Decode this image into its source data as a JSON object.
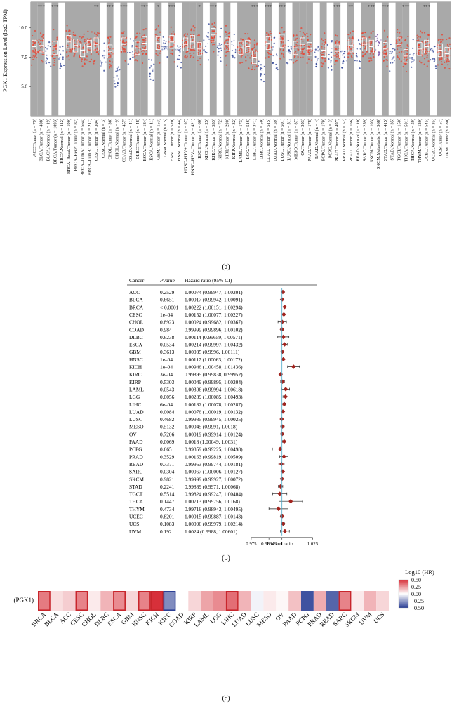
{
  "panel_a": {
    "label": "(a)",
    "ylabel": "PGK1 Expression Level (log2 TPM)",
    "yticks": [
      "5.0",
      "7.5",
      "10.0"
    ],
    "groups": [
      {
        "label": "ACC.Tumor (n = 79)",
        "kind": "tumor",
        "median": 8.4,
        "shade": true,
        "sig": ""
      },
      {
        "label": "BLCA.Tumor (n = 408)",
        "kind": "tumor",
        "median": 8.5,
        "shade": true,
        "sig": "***"
      },
      {
        "label": "BLCA.Normal (n = 19)",
        "kind": "normal",
        "median": 7.7,
        "shade": false,
        "sig": ""
      },
      {
        "label": "BRCA.Tumor (n = 1093)",
        "kind": "tumor",
        "median": 8.3,
        "shade": true,
        "sig": "***"
      },
      {
        "label": "BRCA.Normal (n = 112)",
        "kind": "normal",
        "median": 7.6,
        "shade": false,
        "sig": ""
      },
      {
        "label": "BRCA–Basal.Tumor (n = 190)",
        "kind": "tumor",
        "median": 8.8,
        "shade": true,
        "sig": ""
      },
      {
        "label": "BRCA–Her2.Tumor (n = 82)",
        "kind": "tumor",
        "median": 8.5,
        "shade": true,
        "sig": ""
      },
      {
        "label": "BRCA–LumA.Tumor (n = 564)",
        "kind": "tumor",
        "median": 8.1,
        "shade": true,
        "sig": ""
      },
      {
        "label": "BRCA–LumB.Tumor (n = 217)",
        "kind": "tumor",
        "median": 8.4,
        "shade": true,
        "sig": ""
      },
      {
        "label": "CESC.Tumor (n = 304)",
        "kind": "tumor",
        "median": 8.6,
        "shade": true,
        "sig": "**"
      },
      {
        "label": "CESC.Normal (n = 3)",
        "kind": "normal",
        "median": 7.2,
        "shade": false,
        "sig": ""
      },
      {
        "label": "CHOL.Tumor (n = 36)",
        "kind": "tumor",
        "median": 8.0,
        "shade": true,
        "sig": "***"
      },
      {
        "label": "CHOL.Normal (n = 9)",
        "kind": "normal",
        "median": 6.1,
        "shade": false,
        "sig": ""
      },
      {
        "label": "COAD.Tumor (n = 457)",
        "kind": "tumor",
        "median": 8.6,
        "shade": true,
        "sig": "***"
      },
      {
        "label": "COAD.Normal (n = 41)",
        "kind": "normal",
        "median": 7.8,
        "shade": false,
        "sig": ""
      },
      {
        "label": "DLBC.Tumor (n = 48)",
        "kind": "tumor",
        "median": 8.3,
        "shade": true,
        "sig": ""
      },
      {
        "label": "ESCA.Tumor (n = 184)",
        "kind": "tumor",
        "median": 8.7,
        "shade": true,
        "sig": "***"
      },
      {
        "label": "ESCA.Normal (n = 11)",
        "kind": "normal",
        "median": 6.2,
        "shade": false,
        "sig": ""
      },
      {
        "label": "GBM.Tumor (n = 153)",
        "kind": "tumor",
        "median": 8.7,
        "shade": true,
        "sig": "*"
      },
      {
        "label": "GBM.Normal (n = 5)",
        "kind": "normal",
        "median": 8.3,
        "shade": false,
        "sig": ""
      },
      {
        "label": "HNSC.Tumor (n = 520)",
        "kind": "tumor",
        "median": 8.8,
        "shade": true,
        "sig": "***"
      },
      {
        "label": "HNSC.Normal (n = 44)",
        "kind": "normal",
        "median": 7.8,
        "shade": false,
        "sig": ""
      },
      {
        "label": "HNSC–HPV+.Tumor (n = 97)",
        "kind": "tumor",
        "median": 8.6,
        "shade": true,
        "sig": ""
      },
      {
        "label": "HNSC–HPV–.Tumor (n = 421)",
        "kind": "tumor",
        "median": 8.8,
        "shade": true,
        "sig": ""
      },
      {
        "label": "KICH.Tumor (n = 66)",
        "kind": "tumor",
        "median": 8.2,
        "shade": true,
        "sig": "*"
      },
      {
        "label": "KICH.Normal (n = 25)",
        "kind": "normal",
        "median": 8.6,
        "shade": false,
        "sig": ""
      },
      {
        "label": "KIRC.Tumor (n = 533)",
        "kind": "tumor",
        "median": 9.4,
        "shade": true,
        "sig": "***"
      },
      {
        "label": "KIRC.Normal (n = 72)",
        "kind": "normal",
        "median": 8.4,
        "shade": false,
        "sig": ""
      },
      {
        "label": "KIRP.Tumor (n = 290)",
        "kind": "tumor",
        "median": 8.6,
        "shade": true,
        "sig": ""
      },
      {
        "label": "KIRP.Normal (n = 32)",
        "kind": "normal",
        "median": 8.4,
        "shade": false,
        "sig": ""
      },
      {
        "label": "LAML.Tumor (n = 173)",
        "kind": "tumor",
        "median": 8.3,
        "shade": true,
        "sig": ""
      },
      {
        "label": "LGG.Tumor (n = 516)",
        "kind": "tumor",
        "median": 8.4,
        "shade": true,
        "sig": ""
      },
      {
        "label": "LIHC.Tumor (n = 371)",
        "kind": "tumor",
        "median": 7.5,
        "shade": true,
        "sig": "***"
      },
      {
        "label": "LIHC.Normal (n = 50)",
        "kind": "normal",
        "median": 6.3,
        "shade": false,
        "sig": ""
      },
      {
        "label": "LUAD.Tumor (n = 515)",
        "kind": "tumor",
        "median": 8.7,
        "shade": true,
        "sig": "***"
      },
      {
        "label": "LUAD.Normal (n = 59)",
        "kind": "normal",
        "median": 7.9,
        "shade": false,
        "sig": ""
      },
      {
        "label": "LUSC.Tumor (n = 501)",
        "kind": "tumor",
        "median": 8.9,
        "shade": true,
        "sig": "***"
      },
      {
        "label": "LUSC.Normal (n = 51)",
        "kind": "normal",
        "median": 7.9,
        "shade": false,
        "sig": ""
      },
      {
        "label": "MESO.Tumor (n = 87)",
        "kind": "tumor",
        "median": 8.3,
        "shade": true,
        "sig": ""
      },
      {
        "label": "OV.Tumor (n = 303)",
        "kind": "tumor",
        "median": 8.6,
        "shade": true,
        "sig": ""
      },
      {
        "label": "PAAD.Tumor (n = 178)",
        "kind": "tumor",
        "median": 8.2,
        "shade": true,
        "sig": ""
      },
      {
        "label": "PAAD.Normal (n = 4)",
        "kind": "normal",
        "median": 7.7,
        "shade": false,
        "sig": ""
      },
      {
        "label": "PCPG.Tumor (n = 179)",
        "kind": "tumor",
        "median": 8.1,
        "shade": true,
        "sig": ""
      },
      {
        "label": "PCPG.Normal (n = 3)",
        "kind": "normal",
        "median": 7.8,
        "shade": false,
        "sig": ""
      },
      {
        "label": "PRAD.Tumor (n = 497)",
        "kind": "tumor",
        "median": 8.0,
        "shade": true,
        "sig": "***"
      },
      {
        "label": "PRAD.Normal (n = 52)",
        "kind": "normal",
        "median": 7.6,
        "shade": false,
        "sig": ""
      },
      {
        "label": "READ.Tumor (n = 166)",
        "kind": "tumor",
        "median": 8.5,
        "shade": true,
        "sig": "**"
      },
      {
        "label": "READ.Normal (n = 10)",
        "kind": "normal",
        "median": 8.0,
        "shade": false,
        "sig": ""
      },
      {
        "label": "SARC.Tumor (n = 259)",
        "kind": "tumor",
        "median": 8.6,
        "shade": true,
        "sig": ""
      },
      {
        "label": "SKCM.Tumor (n = 103)",
        "kind": "tumor",
        "median": 8.4,
        "shade": true,
        "sig": "***"
      },
      {
        "label": "SKCM.Metastasis (n = 368)",
        "kind": "metastasis",
        "median": 8.6,
        "shade": false,
        "sig": ""
      },
      {
        "label": "STAD.Tumor (n = 415)",
        "kind": "tumor",
        "median": 8.2,
        "shade": true,
        "sig": "***"
      },
      {
        "label": "STAD.Normal (n = 35)",
        "kind": "normal",
        "median": 7.2,
        "shade": false,
        "sig": ""
      },
      {
        "label": "TGCT.Tumor (n = 150)",
        "kind": "tumor",
        "median": 8.6,
        "shade": true,
        "sig": ""
      },
      {
        "label": "THCA.Tumor (n = 501)",
        "kind": "tumor",
        "median": 7.6,
        "shade": true,
        "sig": "***"
      },
      {
        "label": "THCA.Normal (n = 59)",
        "kind": "normal",
        "median": 7.9,
        "shade": false,
        "sig": ""
      },
      {
        "label": "THYM.Tumor (n = 120)",
        "kind": "tumor",
        "median": 8.2,
        "shade": true,
        "sig": ""
      },
      {
        "label": "UCEC.Tumor (n = 545)",
        "kind": "tumor",
        "median": 8.4,
        "shade": true,
        "sig": "***"
      },
      {
        "label": "UCEC.Normal (n = 35)",
        "kind": "normal",
        "median": 7.6,
        "shade": false,
        "sig": ""
      },
      {
        "label": "UCS.Tumor (n = 57)",
        "kind": "tumor",
        "median": 8.1,
        "shade": true,
        "sig": ""
      },
      {
        "label": "UVM.Tumor (n = 80)",
        "kind": "tumor",
        "median": 7.8,
        "shade": true,
        "sig": ""
      }
    ]
  },
  "panel_b": {
    "label": "(b)",
    "headers": {
      "cancer": "Cancer",
      "pvalue": "Pvalue",
      "hr": "Hazard ratio (95% CI)"
    },
    "xlabel": "Hazard ratio",
    "xticks": [
      0.975,
      0.98943,
      1,
      1.025
    ],
    "xtick_labels": [
      "0.975",
      "0.98943",
      "1",
      "1.025"
    ],
    "xlim": [
      0.9665,
      1.031
    ]
  },
  "chart_data": {
    "type": "forest",
    "rows": [
      {
        "cancer": "ACC",
        "p": "0.2529",
        "hr_text": "1.00074 (0.99947, 1.00201)",
        "hr": 1.00074,
        "lo": 0.99947,
        "hi": 1.00201
      },
      {
        "cancer": "BLCA",
        "p": "0.6651",
        "hr_text": "1.00017 (0.99942, 1.00091)",
        "hr": 1.00017,
        "lo": 0.99942,
        "hi": 1.00091
      },
      {
        "cancer": "BRCA",
        "p": "< 0.0001",
        "hr_text": "1.00222 (1.00151, 1.00294)",
        "hr": 1.00222,
        "lo": 1.00151,
        "hi": 1.00294
      },
      {
        "cancer": "CESC",
        "p": "1e–04",
        "hr_text": "1.00152 (1.00077, 1.00227)",
        "hr": 1.00152,
        "lo": 1.00077,
        "hi": 1.00227
      },
      {
        "cancer": "CHOL",
        "p": "0.8923",
        "hr_text": "1.00024 (0.99682, 1.00367)",
        "hr": 1.00024,
        "lo": 0.99682,
        "hi": 1.00367
      },
      {
        "cancer": "COAD",
        "p": "0.984",
        "hr_text": "0.99999 (0.99896, 1.00102)",
        "hr": 0.99999,
        "lo": 0.99896,
        "hi": 1.00102
      },
      {
        "cancer": "DLBC",
        "p": "0.6238",
        "hr_text": "1.00114 (0.99659, 1.00571)",
        "hr": 1.00114,
        "lo": 0.99659,
        "hi": 1.00571
      },
      {
        "cancer": "ESCA",
        "p": "0.0534",
        "hr_text": "1.00214 (0.99997, 1.00432)",
        "hr": 1.00214,
        "lo": 0.99997,
        "hi": 1.00432
      },
      {
        "cancer": "GBM",
        "p": "0.3613",
        "hr_text": "1.00035 (0.9996, 1.00111)",
        "hr": 1.00035,
        "lo": 0.9996,
        "hi": 1.00111
      },
      {
        "cancer": "HNSC",
        "p": "1e–04",
        "hr_text": "1.00117 (1.00063, 1.00172)",
        "hr": 1.00117,
        "lo": 1.00063,
        "hi": 1.00172
      },
      {
        "cancer": "KICH",
        "p": "1e–04",
        "hr_text": "1.00946 (1.00458, 1.01436)",
        "hr": 1.00946,
        "lo": 1.00458,
        "hi": 1.01436
      },
      {
        "cancer": "KIRC",
        "p": "3e–04",
        "hr_text": "0.99895 (0.99838, 0.99952)",
        "hr": 0.99895,
        "lo": 0.99838,
        "hi": 0.99952
      },
      {
        "cancer": "KIRP",
        "p": "0.5303",
        "hr_text": "1.00049 (0.99895, 1.00204)",
        "hr": 1.00049,
        "lo": 0.99895,
        "hi": 1.00204
      },
      {
        "cancer": "LAML",
        "p": "0.0543",
        "hr_text": "1.00306 (0.99994, 1.00618)",
        "hr": 1.00306,
        "lo": 0.99994,
        "hi": 1.00618
      },
      {
        "cancer": "LGG",
        "p": "0.0056",
        "hr_text": "1.00289 (1.00085, 1.00493)",
        "hr": 1.00289,
        "lo": 1.00085,
        "hi": 1.00493
      },
      {
        "cancer": "LIHC",
        "p": "6e–04",
        "hr_text": "1.00182 (1.00078, 1.00287)",
        "hr": 1.00182,
        "lo": 1.00078,
        "hi": 1.00287
      },
      {
        "cancer": "LUAD",
        "p": "0.0084",
        "hr_text": "1.00076 (1.00019, 1.00132)",
        "hr": 1.00076,
        "lo": 1.00019,
        "hi": 1.00132
      },
      {
        "cancer": "LUSC",
        "p": "0.4682",
        "hr_text": "0.99985 (0.99945, 1.00025)",
        "hr": 0.99985,
        "lo": 0.99945,
        "hi": 1.00025
      },
      {
        "cancer": "MESO",
        "p": "0.5132",
        "hr_text": "1.00045 (0.9991, 1.0018)",
        "hr": 1.00045,
        "lo": 0.9991,
        "hi": 1.0018
      },
      {
        "cancer": "OV",
        "p": "0.7206",
        "hr_text": "1.00019 (0.99914, 1.00124)",
        "hr": 1.00019,
        "lo": 0.99914,
        "hi": 1.00124
      },
      {
        "cancer": "PAAD",
        "p": "0.0069",
        "hr_text": "1.0018 (1.00049, 1.0031)",
        "hr": 1.0018,
        "lo": 1.00049,
        "hi": 1.0031
      },
      {
        "cancer": "PCPG",
        "p": "0.665",
        "hr_text": "0.99859 (0.99225, 1.00498)",
        "hr": 0.99859,
        "lo": 0.99225,
        "hi": 1.00498
      },
      {
        "cancer": "PRAD",
        "p": "0.3529",
        "hr_text": "1.00163 (0.99819, 1.00509)",
        "hr": 1.00163,
        "lo": 0.99819,
        "hi": 1.00509
      },
      {
        "cancer": "READ",
        "p": "0.7371",
        "hr_text": "0.99963 (0.99744, 1.00181)",
        "hr": 0.99963,
        "lo": 0.99744,
        "hi": 1.00181
      },
      {
        "cancer": "SARC",
        "p": "0.0304",
        "hr_text": "1.00067 (1.00006, 1.00127)",
        "hr": 1.00067,
        "lo": 1.00006,
        "hi": 1.00127
      },
      {
        "cancer": "SKCM",
        "p": "0.9821",
        "hr_text": "0.99999 (0.99927, 1.00072)",
        "hr": 0.99999,
        "lo": 0.99927,
        "hi": 1.00072
      },
      {
        "cancer": "STAD",
        "p": "0.2241",
        "hr_text": "0.99889 (0.9971, 1.00068)",
        "hr": 0.99889,
        "lo": 0.9971,
        "hi": 1.00068
      },
      {
        "cancer": "TGCT",
        "p": "0.5514",
        "hr_text": "0.99824 (0.99247, 1.00404)",
        "hr": 0.99824,
        "lo": 0.99247,
        "hi": 1.00404
      },
      {
        "cancer": "THCA",
        "p": "0.1447",
        "hr_text": "1.00713 (0.99756, 1.0168)",
        "hr": 1.00713,
        "lo": 0.99756,
        "hi": 1.0168
      },
      {
        "cancer": "THYM",
        "p": "0.4734",
        "hr_text": "0.99716 (0.98943, 1.00495)",
        "hr": 0.99716,
        "lo": 0.98943,
        "hi": 1.00495
      },
      {
        "cancer": "UCEC",
        "p": "0.8201",
        "hr_text": "1.00015 (0.99887, 1.00143)",
        "hr": 1.00015,
        "lo": 0.99887,
        "hi": 1.00143
      },
      {
        "cancer": "UCS",
        "p": "0.1083",
        "hr_text": "1.00096 (0.99979, 1.00214)",
        "hr": 1.00096,
        "lo": 0.99979,
        "hi": 1.00214
      },
      {
        "cancer": "UVM",
        "p": "0.192",
        "hr_text": "1.0024 (0.9988, 1.00601)",
        "hr": 1.0024,
        "lo": 0.9988,
        "hi": 1.00601
      }
    ]
  },
  "panel_c": {
    "label": "(c)",
    "row_label": "(PGK1)",
    "legend_title": "Log10 (HR)",
    "legend_ticks": [
      "0.50",
      "0.25",
      "0.00",
      "–0.25",
      "–0.50"
    ],
    "legend_values": [
      0.5,
      0.25,
      0.0,
      -0.25,
      -0.5
    ],
    "cells": [
      {
        "name": "BRCA",
        "v": 0.32,
        "sig": true
      },
      {
        "name": "BLCA",
        "v": 0.08,
        "sig": false
      },
      {
        "name": "ACC",
        "v": 0.12,
        "sig": false
      },
      {
        "name": "CESC",
        "v": 0.3,
        "sig": true
      },
      {
        "name": "CHOL",
        "v": 0.05,
        "sig": false
      },
      {
        "name": "DLBC",
        "v": 0.18,
        "sig": false
      },
      {
        "name": "ESCA",
        "v": 0.28,
        "sig": true
      },
      {
        "name": "GBM",
        "v": 0.1,
        "sig": false
      },
      {
        "name": "HNSC",
        "v": 0.3,
        "sig": true
      },
      {
        "name": "KICH",
        "v": 0.55,
        "sig": true
      },
      {
        "name": "KIRC",
        "v": -0.3,
        "sig": true
      },
      {
        "name": "COAD",
        "v": 0.0,
        "sig": false
      },
      {
        "name": "KIRP",
        "v": 0.1,
        "sig": false
      },
      {
        "name": "LAML",
        "v": 0.22,
        "sig": false
      },
      {
        "name": "LGG",
        "v": 0.28,
        "sig": false
      },
      {
        "name": "LIHC",
        "v": 0.35,
        "sig": true
      },
      {
        "name": "LUAD",
        "v": 0.18,
        "sig": false
      },
      {
        "name": "LUSC",
        "v": -0.03,
        "sig": false
      },
      {
        "name": "MESO",
        "v": 0.05,
        "sig": false
      },
      {
        "name": "OV",
        "v": 0.02,
        "sig": false
      },
      {
        "name": "PAAD",
        "v": 0.15,
        "sig": false
      },
      {
        "name": "PCPG",
        "v": -0.45,
        "sig": false
      },
      {
        "name": "PRAD",
        "v": 0.2,
        "sig": false
      },
      {
        "name": "READ",
        "v": -0.4,
        "sig": false
      },
      {
        "name": "SARC",
        "v": 0.3,
        "sig": true
      },
      {
        "name": "SKCM",
        "v": 0.05,
        "sig": false
      },
      {
        "name": "UVM",
        "v": 0.18,
        "sig": false
      },
      {
        "name": "UCS",
        "v": 0.1,
        "sig": false
      }
    ]
  }
}
